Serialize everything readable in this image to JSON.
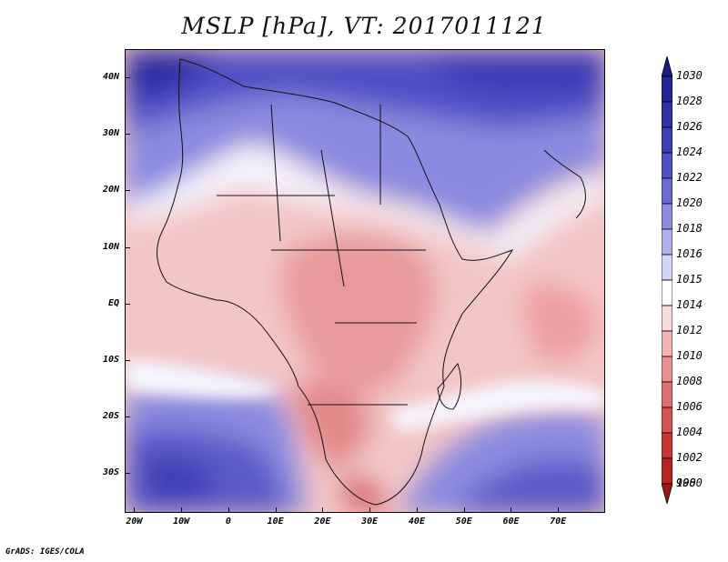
{
  "title": "MSLP [hPa], VT: 2017011121",
  "credit": "GrADS: IGES/COLA",
  "map": {
    "lon_range": [
      -22,
      80
    ],
    "lat_range": [
      -37,
      45
    ],
    "lat_ticks": [
      {
        "value": 40,
        "label": "40N"
      },
      {
        "value": 30,
        "label": "30N"
      },
      {
        "value": 20,
        "label": "20N"
      },
      {
        "value": 10,
        "label": "10N"
      },
      {
        "value": 0,
        "label": "EQ"
      },
      {
        "value": -10,
        "label": "10S"
      },
      {
        "value": -20,
        "label": "20S"
      },
      {
        "value": -30,
        "label": "30S"
      }
    ],
    "lon_ticks": [
      {
        "value": -20,
        "label": "20W"
      },
      {
        "value": -10,
        "label": "10W"
      },
      {
        "value": 0,
        "label": "0"
      },
      {
        "value": 10,
        "label": "10E"
      },
      {
        "value": 20,
        "label": "20E"
      },
      {
        "value": 30,
        "label": "30E"
      },
      {
        "value": 40,
        "label": "40E"
      },
      {
        "value": 50,
        "label": "50E"
      },
      {
        "value": 60,
        "label": "60E"
      },
      {
        "value": 70,
        "label": "70E"
      }
    ]
  },
  "colorbar": {
    "levels": [
      {
        "label": "1030",
        "color": "#1a1a8c"
      },
      {
        "label": "1028",
        "color": "#24249a"
      },
      {
        "label": "1026",
        "color": "#3030a8"
      },
      {
        "label": "1024",
        "color": "#3d3db8"
      },
      {
        "label": "1022",
        "color": "#5050c6"
      },
      {
        "label": "1020",
        "color": "#6a6ad2"
      },
      {
        "label": "1018",
        "color": "#8c8ce0"
      },
      {
        "label": "1016",
        "color": "#b0b0ec"
      },
      {
        "label": "1015",
        "color": "#d4d4f6"
      },
      {
        "label": "1014",
        "color": "#ffffff"
      },
      {
        "label": "1012",
        "color": "#f8dada"
      },
      {
        "label": "1010",
        "color": "#f0b4b4"
      },
      {
        "label": "1008",
        "color": "#e89090"
      },
      {
        "label": "1006",
        "color": "#e07070"
      },
      {
        "label": "1004",
        "color": "#d85050"
      },
      {
        "label": "1002",
        "color": "#cc3333"
      },
      {
        "label": "1000",
        "color": "#bb2222"
      },
      {
        "label": "998",
        "color": "#a01515"
      }
    ]
  }
}
